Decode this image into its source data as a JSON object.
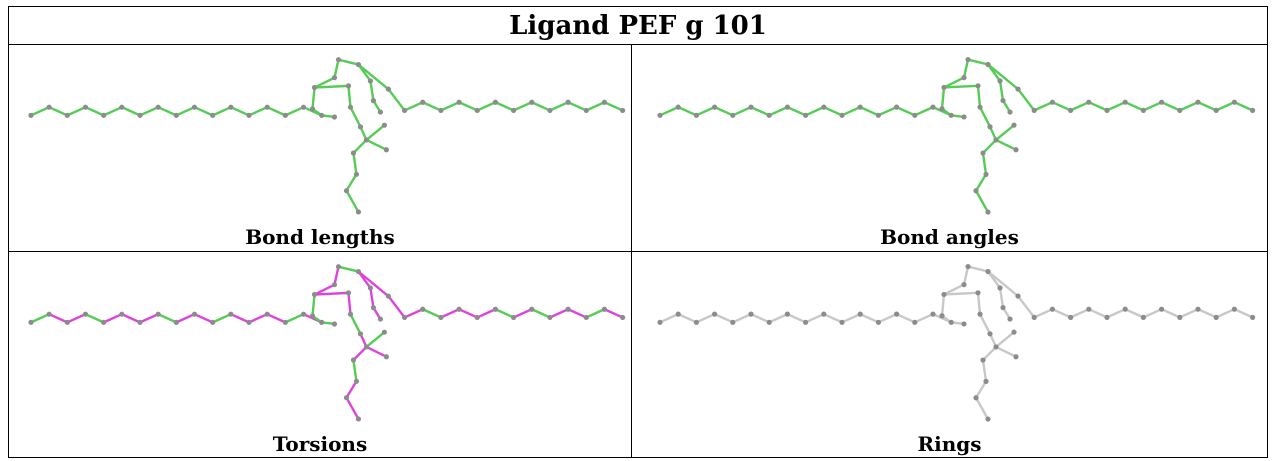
{
  "title": "Ligand PEF g 101",
  "panels": [
    {
      "caption": "Bond lengths",
      "mode": "lengths"
    },
    {
      "caption": "Bond angles",
      "mode": "angles"
    },
    {
      "caption": "Torsions",
      "mode": "torsions"
    },
    {
      "caption": "Rings",
      "mode": "rings"
    }
  ],
  "colors": {
    "good": "#55cc55",
    "outlier": "#dd44dd",
    "neutral": "#c8c8c8",
    "atom": "#8c8c8c",
    "border": "#000000"
  }
}
